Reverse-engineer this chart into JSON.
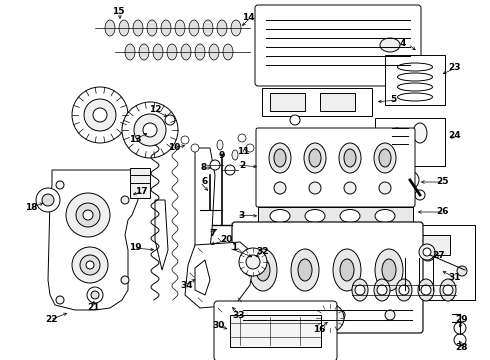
{
  "background_color": "#ffffff",
  "line_color": "#000000",
  "figure_width": 4.9,
  "figure_height": 3.6,
  "dpi": 100,
  "font_size": 6.5
}
